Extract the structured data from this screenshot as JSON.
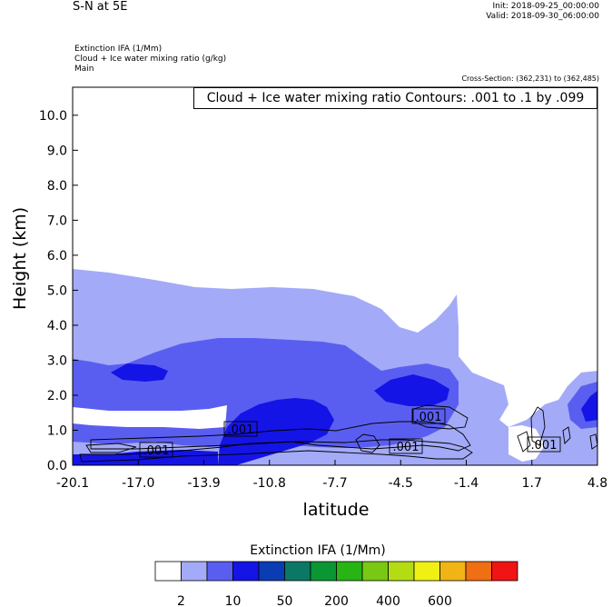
{
  "header": {
    "title": "S-N at 5E",
    "init": "Init: 2018-09-25_00:00:00",
    "valid": "Valid: 2018-09-30_06:00:00",
    "field1": "Extinction IFA   (1/Mm)",
    "field2": "Cloud + Ice water mixing ratio   (g/kg)",
    "field3": "Main",
    "cross_section": "Cross-Section: (362,231) to (362,485)",
    "contour_info": "Cloud + Ice water mixing ratio Contours: .001 to .1 by .099"
  },
  "chart_data": {
    "type": "heatmap",
    "xlabel": "latitude",
    "ylabel": "Height (km)",
    "xlim": [
      -20.1,
      4.8
    ],
    "ylim": [
      0.0,
      10.8
    ],
    "x_ticks": [
      "-20.1",
      "-17.0",
      "-13.9",
      "-10.8",
      "-7.7",
      "-4.5",
      "-1.4",
      "1.7",
      "4.8"
    ],
    "y_ticks": [
      "0.0",
      "1.0",
      "2.0",
      "3.0",
      "4.0",
      "5.0",
      "6.0",
      "7.0",
      "8.0",
      "9.0",
      "10.0"
    ],
    "contour_labels": [
      ".001",
      ".001",
      ".001",
      ".001"
    ],
    "colorbar": {
      "title": "Extinction IFA  (1/Mm)",
      "labels": [
        "2",
        "10",
        "50",
        "200",
        "400",
        "600"
      ],
      "colors": [
        "#ffffff",
        "#a3aaf7",
        "#5a5ef0",
        "#1414e6",
        "#0a3cb4",
        "#0a7864",
        "#0a9632",
        "#28b414",
        "#78c814",
        "#b4dc14",
        "#f0f014",
        "#f0b414",
        "#f06e14",
        "#f01414"
      ]
    },
    "fill_colors": {
      "light": "#a3aaf7",
      "medium": "#5a5ef0",
      "dark": "#1414e6"
    }
  }
}
